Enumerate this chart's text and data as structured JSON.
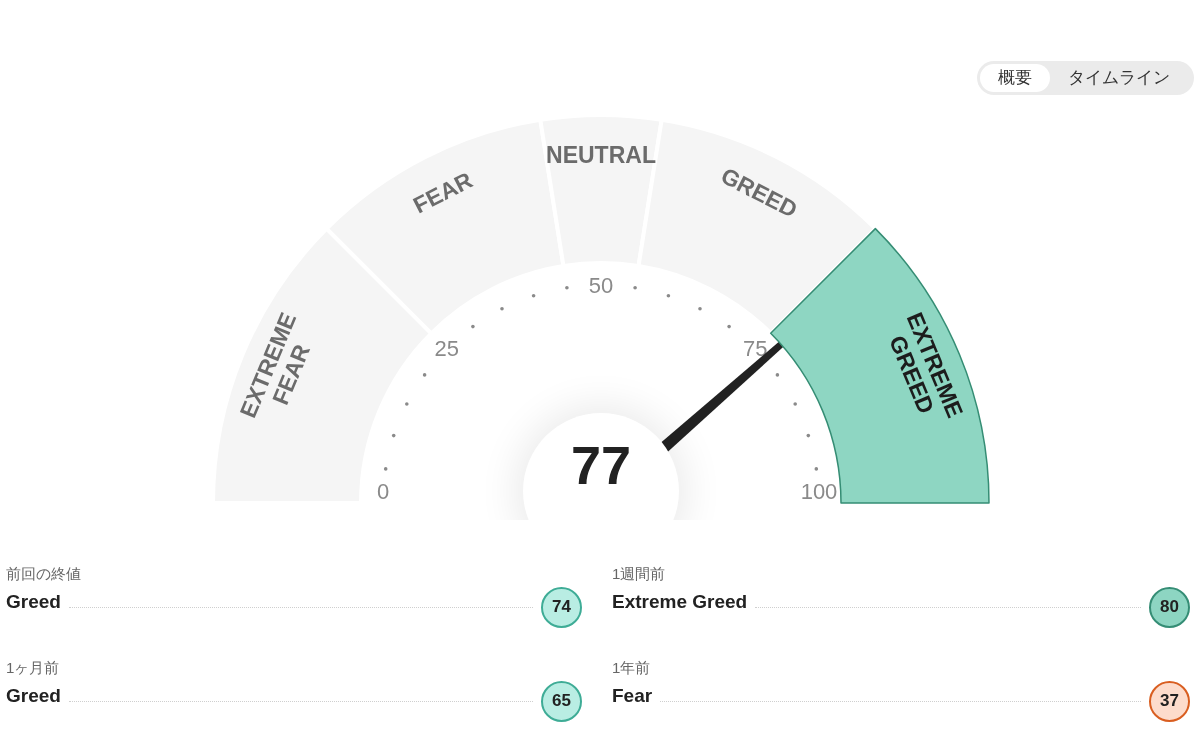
{
  "chart_data": [
    {
      "type": "donut",
      "categories": [
        "EXTREME FEAR",
        "FEAR",
        "NEUTRAL",
        "GREED",
        "EXTREME GREED"
      ],
      "values": [
        25,
        20,
        10,
        20,
        25
      ],
      "colors": [
        "#f5f5f5",
        "#f5f5f5",
        "#f5f5f5",
        "#f5f5f5",
        "#8ed6c2"
      ],
      "needle": "EXTREME GREED",
      "annotations": [
        "77",
        "0",
        "25",
        "50",
        "75",
        "100",
        "概要",
        "タイムライン"
      ]
    },
    {
      "type": "other",
      "categories": [
        "前回の終値"
      ],
      "values": [
        74
      ],
      "annotations": [
        "Greed"
      ],
      "colors": [
        "#b9ede3"
      ],
      "data_labels": true
    },
    {
      "type": "other",
      "categories": [
        "1週間前"
      ],
      "values": [
        80
      ],
      "annotations": [
        "Extreme Greed"
      ],
      "colors": [
        "#8dd5c2"
      ],
      "data_labels": true
    },
    {
      "type": "other",
      "categories": [
        "1ヶ月前"
      ],
      "values": [
        65
      ],
      "annotations": [
        "Greed"
      ],
      "colors": [
        "#b9ede3"
      ],
      "data_labels": true
    },
    {
      "type": "other",
      "categories": [
        "1年前"
      ],
      "values": [
        37
      ],
      "annotations": [
        "Fear"
      ],
      "colors": [
        "#fddccc"
      ],
      "data_labels": true
    }
  ]
}
